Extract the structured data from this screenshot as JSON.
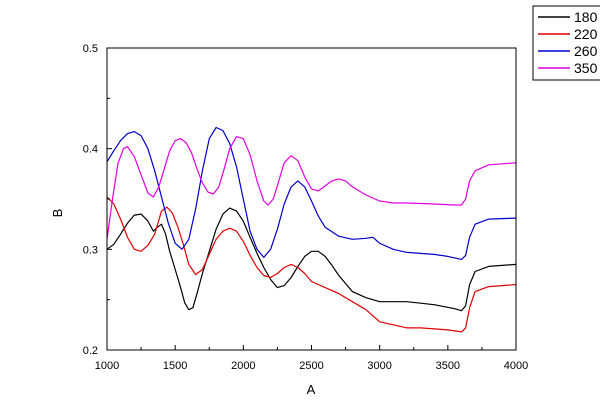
{
  "chart_data": {
    "type": "line",
    "title": "",
    "xlabel": "A",
    "ylabel": "B",
    "xlim": [
      1000,
      4000
    ],
    "ylim": [
      0.2,
      0.5
    ],
    "xticks": [
      1000,
      1500,
      2000,
      2500,
      3000,
      3500,
      4000
    ],
    "yticks": [
      0.2,
      0.3,
      0.4,
      0.5
    ],
    "xtick_labels": [
      "1000",
      "1500",
      "2000",
      "2500",
      "3000",
      "3500",
      "4000"
    ],
    "ytick_labels": [
      "0.2",
      "0.3",
      "0.4",
      "0.5"
    ],
    "grid": false,
    "legend_position": "top-right-outside",
    "series": [
      {
        "name": "180",
        "color": "#000000",
        "points": [
          [
            1000,
            0.3
          ],
          [
            1050,
            0.305
          ],
          [
            1100,
            0.315
          ],
          [
            1150,
            0.326
          ],
          [
            1200,
            0.334
          ],
          [
            1250,
            0.335
          ],
          [
            1300,
            0.328
          ],
          [
            1340,
            0.318
          ],
          [
            1370,
            0.322
          ],
          [
            1400,
            0.325
          ],
          [
            1430,
            0.315
          ],
          [
            1460,
            0.298
          ],
          [
            1500,
            0.28
          ],
          [
            1540,
            0.262
          ],
          [
            1570,
            0.247
          ],
          [
            1600,
            0.24
          ],
          [
            1630,
            0.242
          ],
          [
            1660,
            0.256
          ],
          [
            1700,
            0.276
          ],
          [
            1750,
            0.298
          ],
          [
            1800,
            0.32
          ],
          [
            1850,
            0.335
          ],
          [
            1900,
            0.341
          ],
          [
            1950,
            0.338
          ],
          [
            2000,
            0.328
          ],
          [
            2050,
            0.312
          ],
          [
            2100,
            0.296
          ],
          [
            2150,
            0.282
          ],
          [
            2200,
            0.27
          ],
          [
            2250,
            0.262
          ],
          [
            2300,
            0.264
          ],
          [
            2350,
            0.272
          ],
          [
            2400,
            0.283
          ],
          [
            2450,
            0.293
          ],
          [
            2500,
            0.298
          ],
          [
            2550,
            0.298
          ],
          [
            2600,
            0.293
          ],
          [
            2650,
            0.284
          ],
          [
            2700,
            0.274
          ],
          [
            2800,
            0.258
          ],
          [
            2900,
            0.252
          ],
          [
            3000,
            0.248
          ],
          [
            3200,
            0.248
          ],
          [
            3400,
            0.245
          ],
          [
            3550,
            0.241
          ],
          [
            3600,
            0.239
          ],
          [
            3630,
            0.244
          ],
          [
            3660,
            0.265
          ],
          [
            3700,
            0.278
          ],
          [
            3800,
            0.283
          ],
          [
            4000,
            0.285
          ]
        ]
      },
      {
        "name": "220",
        "color": "#e00000",
        "points": [
          [
            1000,
            0.352
          ],
          [
            1050,
            0.345
          ],
          [
            1100,
            0.33
          ],
          [
            1150,
            0.312
          ],
          [
            1200,
            0.3
          ],
          [
            1250,
            0.298
          ],
          [
            1300,
            0.304
          ],
          [
            1350,
            0.315
          ],
          [
            1400,
            0.338
          ],
          [
            1440,
            0.342
          ],
          [
            1480,
            0.336
          ],
          [
            1520,
            0.322
          ],
          [
            1560,
            0.305
          ],
          [
            1600,
            0.285
          ],
          [
            1650,
            0.275
          ],
          [
            1700,
            0.28
          ],
          [
            1750,
            0.295
          ],
          [
            1800,
            0.31
          ],
          [
            1850,
            0.318
          ],
          [
            1900,
            0.321
          ],
          [
            1950,
            0.318
          ],
          [
            2000,
            0.308
          ],
          [
            2050,
            0.294
          ],
          [
            2100,
            0.282
          ],
          [
            2150,
            0.274
          ],
          [
            2200,
            0.272
          ],
          [
            2250,
            0.276
          ],
          [
            2300,
            0.282
          ],
          [
            2350,
            0.285
          ],
          [
            2400,
            0.282
          ],
          [
            2450,
            0.276
          ],
          [
            2500,
            0.268
          ],
          [
            2600,
            0.262
          ],
          [
            2700,
            0.256
          ],
          [
            2800,
            0.248
          ],
          [
            2900,
            0.24
          ],
          [
            2950,
            0.234
          ],
          [
            3000,
            0.228
          ],
          [
            3100,
            0.225
          ],
          [
            3200,
            0.222
          ],
          [
            3300,
            0.222
          ],
          [
            3400,
            0.221
          ],
          [
            3500,
            0.22
          ],
          [
            3600,
            0.218
          ],
          [
            3630,
            0.222
          ],
          [
            3660,
            0.242
          ],
          [
            3700,
            0.258
          ],
          [
            3800,
            0.263
          ],
          [
            4000,
            0.265
          ]
        ]
      },
      {
        "name": "260",
        "color": "#0000cc",
        "points": [
          [
            1000,
            0.387
          ],
          [
            1050,
            0.398
          ],
          [
            1100,
            0.408
          ],
          [
            1150,
            0.415
          ],
          [
            1200,
            0.417
          ],
          [
            1250,
            0.413
          ],
          [
            1300,
            0.4
          ],
          [
            1350,
            0.378
          ],
          [
            1400,
            0.352
          ],
          [
            1450,
            0.326
          ],
          [
            1500,
            0.306
          ],
          [
            1550,
            0.3
          ],
          [
            1600,
            0.31
          ],
          [
            1650,
            0.34
          ],
          [
            1700,
            0.378
          ],
          [
            1750,
            0.41
          ],
          [
            1800,
            0.421
          ],
          [
            1850,
            0.418
          ],
          [
            1900,
            0.405
          ],
          [
            1950,
            0.382
          ],
          [
            2000,
            0.35
          ],
          [
            2050,
            0.318
          ],
          [
            2100,
            0.3
          ],
          [
            2150,
            0.292
          ],
          [
            2200,
            0.3
          ],
          [
            2250,
            0.32
          ],
          [
            2300,
            0.345
          ],
          [
            2350,
            0.362
          ],
          [
            2400,
            0.368
          ],
          [
            2450,
            0.362
          ],
          [
            2500,
            0.348
          ],
          [
            2550,
            0.333
          ],
          [
            2600,
            0.322
          ],
          [
            2700,
            0.313
          ],
          [
            2800,
            0.31
          ],
          [
            2900,
            0.311
          ],
          [
            2950,
            0.312
          ],
          [
            3000,
            0.306
          ],
          [
            3100,
            0.3
          ],
          [
            3200,
            0.297
          ],
          [
            3300,
            0.296
          ],
          [
            3400,
            0.295
          ],
          [
            3500,
            0.293
          ],
          [
            3600,
            0.29
          ],
          [
            3630,
            0.294
          ],
          [
            3660,
            0.312
          ],
          [
            3700,
            0.325
          ],
          [
            3800,
            0.33
          ],
          [
            4000,
            0.331
          ]
        ]
      },
      {
        "name": "350",
        "color": "#e000e0",
        "points": [
          [
            1000,
            0.31
          ],
          [
            1040,
            0.35
          ],
          [
            1080,
            0.385
          ],
          [
            1120,
            0.4
          ],
          [
            1150,
            0.402
          ],
          [
            1200,
            0.392
          ],
          [
            1250,
            0.374
          ],
          [
            1300,
            0.356
          ],
          [
            1340,
            0.352
          ],
          [
            1380,
            0.362
          ],
          [
            1420,
            0.38
          ],
          [
            1460,
            0.398
          ],
          [
            1500,
            0.408
          ],
          [
            1540,
            0.41
          ],
          [
            1580,
            0.406
          ],
          [
            1620,
            0.396
          ],
          [
            1660,
            0.38
          ],
          [
            1700,
            0.366
          ],
          [
            1740,
            0.357
          ],
          [
            1780,
            0.355
          ],
          [
            1820,
            0.362
          ],
          [
            1860,
            0.38
          ],
          [
            1900,
            0.4
          ],
          [
            1950,
            0.412
          ],
          [
            2000,
            0.41
          ],
          [
            2050,
            0.394
          ],
          [
            2100,
            0.368
          ],
          [
            2150,
            0.348
          ],
          [
            2180,
            0.344
          ],
          [
            2220,
            0.35
          ],
          [
            2260,
            0.368
          ],
          [
            2300,
            0.386
          ],
          [
            2350,
            0.393
          ],
          [
            2400,
            0.388
          ],
          [
            2450,
            0.372
          ],
          [
            2500,
            0.36
          ],
          [
            2550,
            0.358
          ],
          [
            2600,
            0.363
          ],
          [
            2650,
            0.368
          ],
          [
            2700,
            0.37
          ],
          [
            2750,
            0.368
          ],
          [
            2800,
            0.362
          ],
          [
            2900,
            0.354
          ],
          [
            3000,
            0.348
          ],
          [
            3100,
            0.346
          ],
          [
            3200,
            0.346
          ],
          [
            3400,
            0.345
          ],
          [
            3550,
            0.344
          ],
          [
            3600,
            0.344
          ],
          [
            3630,
            0.35
          ],
          [
            3660,
            0.368
          ],
          [
            3700,
            0.378
          ],
          [
            3800,
            0.384
          ],
          [
            4000,
            0.386
          ]
        ]
      }
    ]
  }
}
